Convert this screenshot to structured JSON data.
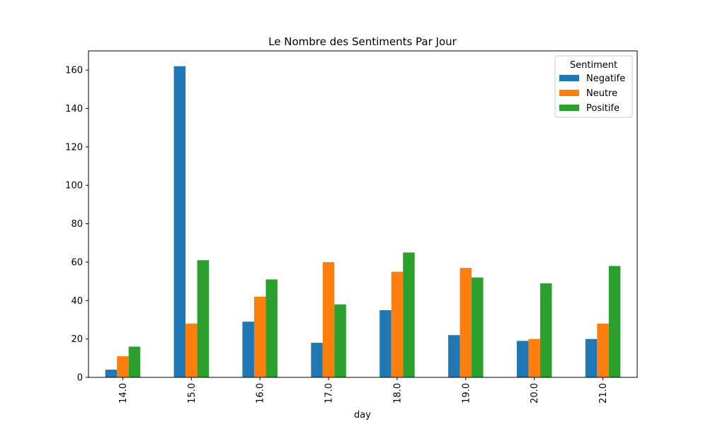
{
  "chart_data": {
    "type": "bar",
    "title": "Le Nombre des Sentiments Par Jour",
    "xlabel": "day",
    "ylabel": "",
    "categories": [
      "14.0",
      "15.0",
      "16.0",
      "17.0",
      "18.0",
      "19.0",
      "20.0",
      "21.0"
    ],
    "series": [
      {
        "name": "Negatife",
        "color": "#1f77b4",
        "values": [
          4,
          162,
          29,
          18,
          35,
          22,
          19,
          20
        ]
      },
      {
        "name": "Neutre",
        "color": "#ff7f0e",
        "values": [
          11,
          28,
          42,
          60,
          55,
          57,
          20,
          28
        ]
      },
      {
        "name": "Positife",
        "color": "#2ca02c",
        "values": [
          16,
          61,
          51,
          38,
          65,
          52,
          49,
          58
        ]
      }
    ],
    "ylim": [
      0,
      170
    ],
    "yticks": [
      0,
      20,
      40,
      60,
      80,
      100,
      120,
      140,
      160
    ],
    "legend": {
      "title": "Sentiment",
      "position": "top-right"
    },
    "grid": false
  }
}
